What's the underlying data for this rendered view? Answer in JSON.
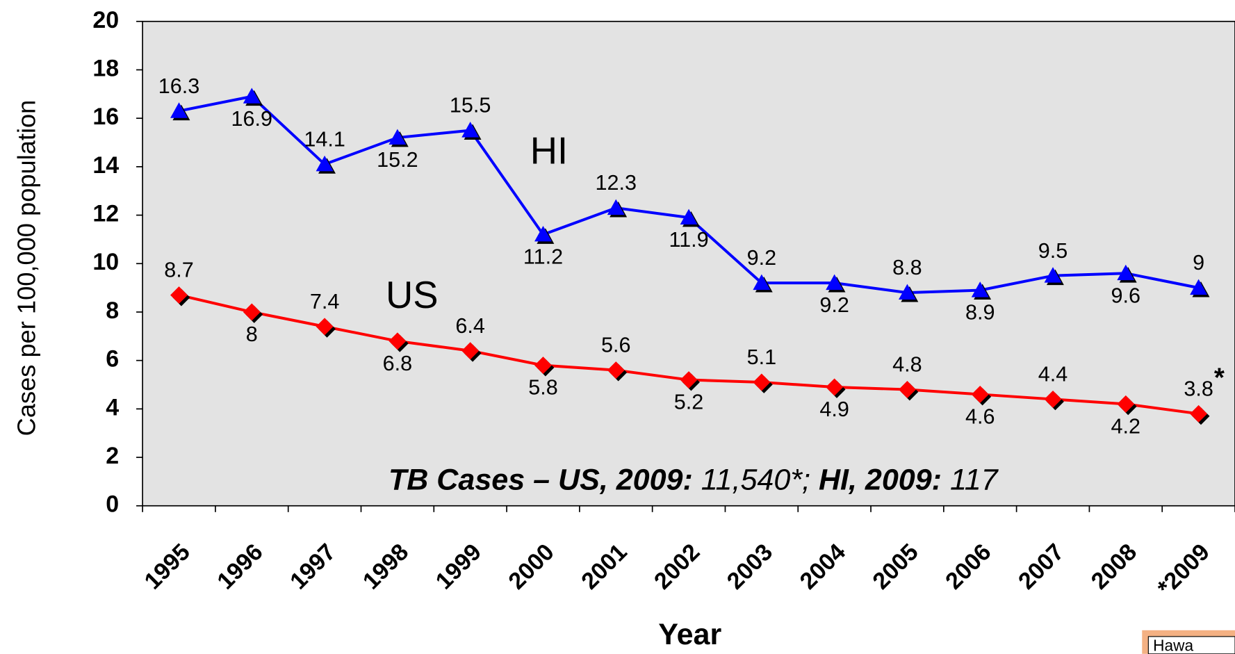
{
  "chart_data": {
    "type": "line",
    "x_label": "Year",
    "y_label": "Cases per 100,000 population",
    "categories": [
      "1995",
      "1996",
      "1997",
      "1998",
      "1999",
      "2000",
      "2001",
      "2002",
      "2003",
      "2004",
      "2005",
      "2006",
      "2007",
      "2008",
      "*2009"
    ],
    "series": [
      {
        "name": "HI",
        "color": "#0000ff",
        "marker": "triangle",
        "values": [
          16.3,
          16.9,
          14.1,
          15.2,
          15.5,
          11.2,
          12.3,
          11.9,
          9.2,
          9.2,
          8.8,
          8.9,
          9.5,
          9.6,
          9
        ]
      },
      {
        "name": "US",
        "color": "#ff0000",
        "marker": "diamond",
        "values": [
          8.7,
          8,
          7.4,
          6.8,
          6.4,
          5.8,
          5.6,
          5.2,
          5.1,
          4.9,
          4.8,
          4.6,
          4.4,
          4.2,
          3.8
        ]
      }
    ],
    "ylim": [
      0,
      20
    ],
    "yticks": [
      0,
      2,
      4,
      6,
      8,
      10,
      12,
      14,
      16,
      18,
      20
    ],
    "annotation": [
      "TB Cases – US, 2009:",
      " 11,540*;",
      " HI, 2009:",
      " 117"
    ],
    "footnote_mark": "*",
    "logo_text": "Hawa"
  }
}
